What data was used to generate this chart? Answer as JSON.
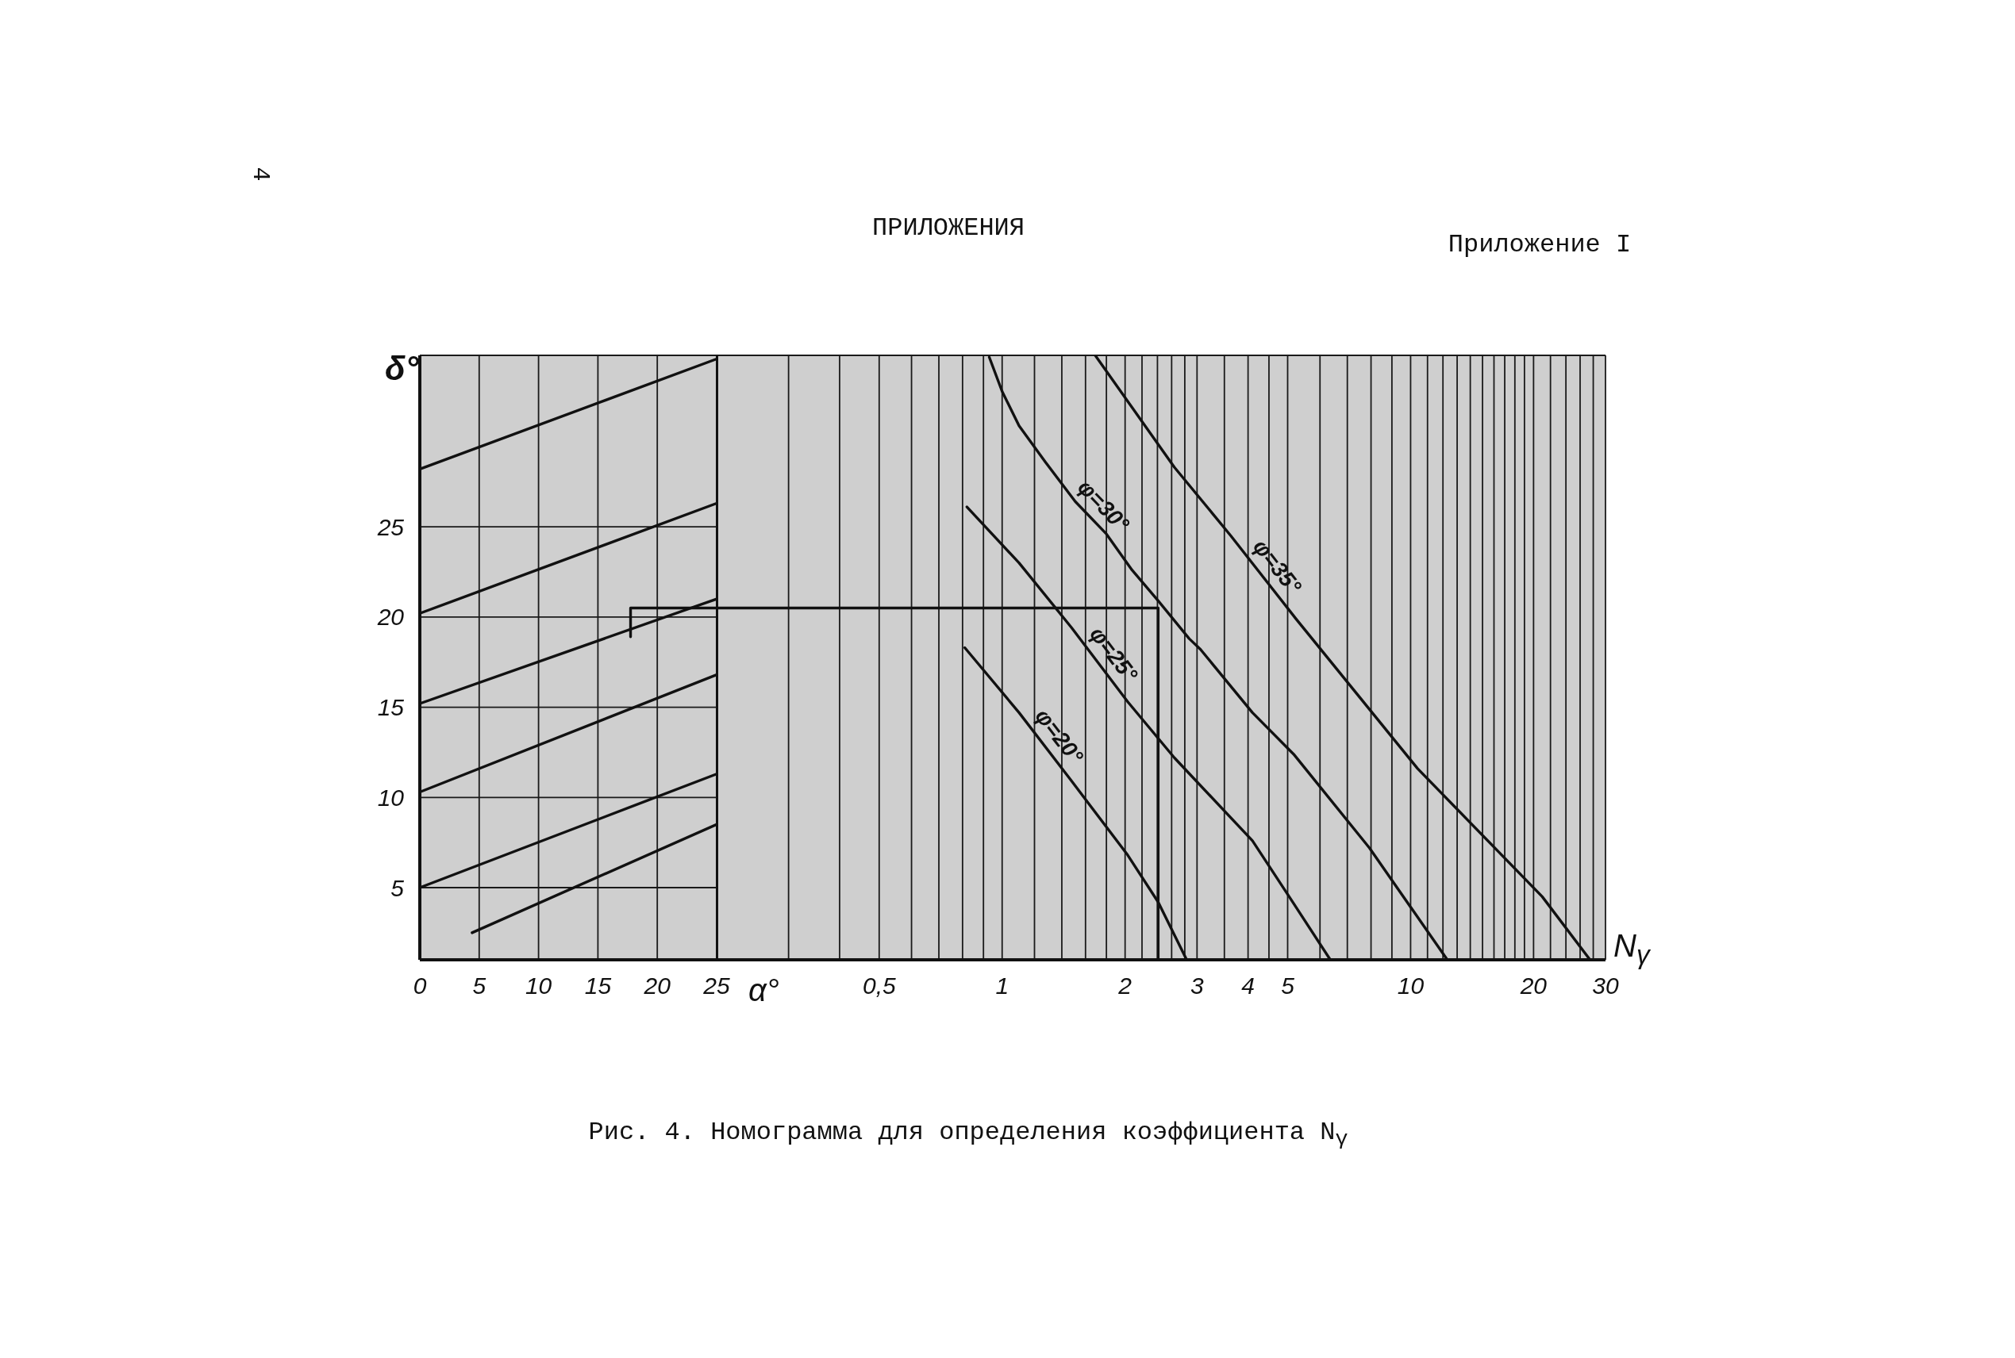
{
  "chart_data": [
    {
      "type": "line",
      "title": "Рис. 4. Номограмма для определения коэффициента N$_{γ}$",
      "xlabel": "α°",
      "ylabel": "δ°",
      "annotations": [
        "4",
        "ПРИЛОЖЕНИЯ",
        "Приложение I"
      ],
      "xlim": [
        0,
        25
      ],
      "xticks": [
        0,
        5,
        10,
        15,
        20,
        25
      ],
      "ylim": [
        1,
        34.5
      ],
      "yticks": [
        5,
        10,
        15,
        20,
        25
      ],
      "grid": true,
      "series": [
        {
          "color": "#111111",
          "x": [
            0,
            25
          ],
          "values": [
            28.2,
            34.3
          ]
        },
        {
          "color": "#111111",
          "x": [
            0,
            25
          ],
          "values": [
            20.2,
            26.3
          ]
        },
        {
          "color": "#111111",
          "x": [
            0,
            25
          ],
          "values": [
            15.2,
            21.0
          ]
        },
        {
          "color": "#111111",
          "x": [
            0,
            25
          ],
          "values": [
            10.3,
            16.8
          ]
        },
        {
          "color": "#111111",
          "x": [
            0,
            25
          ],
          "values": [
            5.0,
            11.3
          ]
        },
        {
          "color": "#111111",
          "x": [
            4.4,
            25
          ],
          "values": [
            2.5,
            8.5
          ]
        },
        {
          "color": "#111111",
          "x": [
            17.75,
            17.75,
            25
          ],
          "values": [
            18.9,
            20.5,
            20.5
          ]
        }
      ]
    },
    {
      "type": "line",
      "xlabel": "N$_{γ}$",
      "log": "x",
      "xlim": [
        0.2,
        30
      ],
      "xticks": [
        {
          "value": 0.3,
          "label": null
        },
        {
          "value": 0.4,
          "label": null
        },
        {
          "value": 0.5,
          "label": "0,5"
        },
        {
          "value": 0.6,
          "label": null
        },
        {
          "value": 0.7,
          "label": null
        },
        {
          "value": 0.8,
          "label": null
        },
        {
          "value": 0.9,
          "label": null
        },
        1,
        {
          "value": 1.2,
          "label": null
        },
        {
          "value": 1.4,
          "label": null
        },
        {
          "value": 1.6,
          "label": null
        },
        {
          "value": 1.8,
          "label": null
        },
        2,
        {
          "value": 2.2,
          "label": null
        },
        {
          "value": 2.4,
          "label": null
        },
        {
          "value": 2.6,
          "label": null
        },
        {
          "value": 2.8,
          "label": null
        },
        3,
        {
          "value": 3.5,
          "label": null
        },
        4,
        {
          "value": 4.5,
          "label": null
        },
        5,
        {
          "value": 6,
          "label": null
        },
        {
          "value": 7,
          "label": null
        },
        {
          "value": 8,
          "label": null
        },
        {
          "value": 9,
          "label": null
        },
        10,
        {
          "value": 11,
          "label": null
        },
        {
          "value": 12,
          "label": null
        },
        {
          "value": 13,
          "label": null
        },
        {
          "value": 14,
          "label": null
        },
        {
          "value": 15,
          "label": null
        },
        {
          "value": 16,
          "label": null
        },
        {
          "value": 17,
          "label": null
        },
        {
          "value": 18,
          "label": null
        },
        {
          "value": 19,
          "label": null
        },
        20,
        {
          "value": 22,
          "label": null
        },
        {
          "value": 24,
          "label": null
        },
        {
          "value": 26,
          "label": null
        },
        {
          "value": 28,
          "label": null
        },
        30
      ],
      "ylim": [
        1,
        34.5
      ],
      "yticks": [
        5,
        10,
        15,
        20,
        25
      ],
      "grid": true,
      "tick_labels": "x",
      "series": [
        {
          "name": "φ=20°",
          "color": "#111111",
          "x": [
            0.81,
            1.1,
            1.48,
            2.03,
            2.41,
            2.83
          ],
          "values": [
            18.3,
            14.7,
            10.9,
            6.8,
            4.2,
            1.0
          ]
        },
        {
          "name": "φ=25°",
          "color": "#111111",
          "x": [
            0.82,
            1.1,
            1.48,
            2.03,
            2.64,
            4.1,
            5.11,
            6.36
          ],
          "values": [
            26.1,
            23.0,
            19.4,
            15.3,
            12.2,
            7.6,
            4.3,
            1.0
          ]
        },
        {
          "name": "φ=30°",
          "color": "#111111",
          "x": [
            0.93,
            1.0,
            1.1,
            1.275,
            1.51,
            1.8,
            2.08,
            2.41,
            2.87,
            3.06,
            4.1,
            5.17,
            7.93,
            12.3
          ],
          "values": [
            34.4,
            32.5,
            30.6,
            28.6,
            26.4,
            24.6,
            22.6,
            20.9,
            18.8,
            18.2,
            14.7,
            12.4,
            7.2,
            1.0
          ]
        },
        {
          "name": "φ=35°",
          "color": "#111111",
          "x": [
            1.69,
            2.64,
            3.63,
            5.24,
            10.4,
            21.0,
            27.5
          ],
          "values": [
            34.5,
            28.3,
            24.5,
            19.9,
            11.6,
            4.5,
            1.0
          ]
        },
        {
          "color": "#111111",
          "x": [
            0.2,
            2.41,
            2.41
          ],
          "values": [
            20.5,
            20.5,
            1.0
          ]
        }
      ]
    }
  ]
}
